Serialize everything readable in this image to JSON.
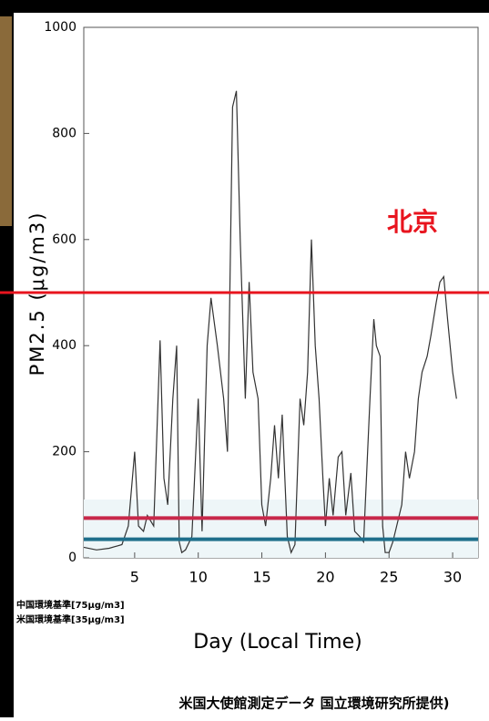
{
  "chart_data": {
    "type": "line",
    "y_label": "PM2.5 (μg/m3)",
    "x_label": "Day (Local Time)",
    "annotation": "北京",
    "source": "米国大使館測定データ 国立環境研究所提供)",
    "x": [
      1,
      2,
      3,
      4,
      4.5,
      5,
      5.3,
      5.7,
      6,
      6.5,
      7,
      7.3,
      7.6,
      8,
      8.3,
      8.5,
      8.7,
      9,
      9.5,
      10,
      10.3,
      10.7,
      11,
      11.5,
      12,
      12.3,
      12.7,
      13,
      13.3,
      13.7,
      14,
      14.3,
      14.7,
      15,
      15.3,
      15.7,
      16,
      16.3,
      16.6,
      17,
      17.3,
      17.6,
      18,
      18.3,
      18.6,
      18.9,
      19.2,
      19.5,
      19.8,
      20,
      20.3,
      20.6,
      21,
      21.3,
      21.6,
      22,
      22.3,
      22.7,
      23,
      23.5,
      23.8,
      24,
      24.3,
      24.5,
      24.7,
      25,
      25.3,
      25.6,
      26,
      26.3,
      26.6,
      27,
      27.3,
      27.6,
      28,
      28.3,
      28.7,
      29,
      29.3,
      29.6,
      30,
      30.3
    ],
    "values": [
      20,
      15,
      18,
      25,
      60,
      200,
      60,
      50,
      80,
      60,
      410,
      150,
      100,
      300,
      400,
      30,
      10,
      15,
      40,
      300,
      50,
      400,
      490,
      400,
      300,
      200,
      850,
      880,
      600,
      300,
      520,
      350,
      300,
      100,
      60,
      150,
      250,
      150,
      270,
      40,
      10,
      25,
      300,
      250,
      350,
      600,
      400,
      300,
      150,
      60,
      150,
      80,
      190,
      200,
      80,
      160,
      50,
      40,
      30,
      300,
      450,
      400,
      380,
      60,
      10,
      10,
      30,
      60,
      100,
      200,
      150,
      200,
      300,
      350,
      380,
      420,
      480,
      520,
      530,
      450,
      350,
      300
    ],
    "color": "#333333",
    "xlim": [
      1,
      32
    ],
    "ylim": [
      0,
      1000
    ],
    "xticks": [
      5,
      10,
      15,
      20,
      25,
      30
    ],
    "yticks": [
      0,
      200,
      400,
      600,
      800,
      1000
    ],
    "reference_lines": [
      {
        "value": 500,
        "color": "#e8141e"
      },
      {
        "name": "中国環境基準[75μg/m3]",
        "value": 75,
        "color": "#c8284a"
      },
      {
        "name": "米国環境基準[35μg/m3]",
        "value": 35,
        "color": "#1f6f8b"
      }
    ]
  }
}
